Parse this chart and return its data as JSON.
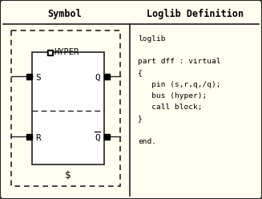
{
  "bg": "#fffef0",
  "border_color": "#222222",
  "fig_w": 3.27,
  "fig_h": 2.48,
  "dpi": 100,
  "header_left": "Symbol",
  "header_right": "Loglib Definition",
  "header_fontsize": 8.5,
  "code_lines": [
    "loglib",
    "",
    "part dff : virtual",
    "{",
    "   pin (s,r,q,/q);",
    "   bus (hyper);",
    "   call block;",
    "}",
    "",
    "end."
  ],
  "code_fontsize": 6.8,
  "sym_label": "HYPER",
  "pin_s": "S",
  "pin_r": "R",
  "pin_q": "Q",
  "pin_qbar": "Q",
  "pin_dollar": "$"
}
